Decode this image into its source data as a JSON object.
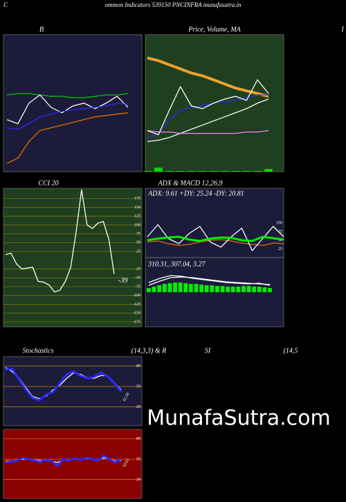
{
  "header": {
    "left": "C",
    "title": "ommon  Indicators 539150  PNCINFRA munafasutra.in",
    "right": "I"
  },
  "watermark": "MunafaSutra.com",
  "chart_data": [
    {
      "type": "line",
      "title": "B",
      "ylim": [
        0,
        100
      ],
      "series": [
        {
          "color": "#00cc00",
          "values": [
            56,
            57,
            57,
            56,
            55,
            55,
            54,
            54,
            55,
            56,
            56,
            57
          ]
        },
        {
          "color": "#ffffff",
          "values": [
            38,
            35,
            50,
            56,
            47,
            43,
            48,
            50,
            46,
            50,
            55,
            47
          ]
        },
        {
          "color": "#2a2aff",
          "values": [
            32,
            31,
            35,
            40,
            42,
            44,
            45,
            46,
            47,
            48,
            50,
            49
          ]
        },
        {
          "color": "#e07000",
          "values": [
            6,
            10,
            22,
            30,
            32,
            34,
            36,
            38,
            40,
            41,
            42,
            43
          ]
        }
      ]
    },
    {
      "type": "line",
      "title": "Price,  Volume,  MA",
      "ylim": [
        0,
        100
      ],
      "volume": {
        "color": "#00dd00",
        "values": [
          0.5,
          3,
          0.5,
          0.5,
          0.5,
          0.5,
          0.5,
          0.5,
          0.5,
          0.5,
          0.5,
          2
        ]
      },
      "series": [
        {
          "color": "#f0a030",
          "width": 4,
          "values": [
            83,
            81,
            78,
            75,
            72,
            70,
            67,
            64,
            61,
            59,
            57,
            55
          ]
        },
        {
          "color": "#ffffff",
          "values": [
            22,
            23,
            25,
            28,
            31,
            34,
            37,
            40,
            43,
            46,
            50,
            53
          ]
        },
        {
          "color": "#ff80ff",
          "values": [
            30,
            29,
            29,
            28,
            28,
            28,
            28,
            28,
            28,
            29,
            29,
            30
          ]
        },
        {
          "color": "#2a2aff",
          "values": [
            24,
            28,
            38,
            45,
            47,
            48,
            50,
            51,
            52,
            54,
            56,
            56
          ]
        },
        {
          "color": "#ffffff",
          "values": [
            30,
            27,
            45,
            62,
            48,
            46,
            50,
            53,
            55,
            52,
            67,
            57
          ]
        }
      ]
    },
    {
      "type": "line",
      "title": "CCI 20",
      "ylim": [
        -189,
        204
      ],
      "grid": true,
      "yticks": [
        175,
        150,
        125,
        100,
        75,
        50,
        25,
        -25,
        -50,
        -75,
        -100,
        -125,
        -150,
        -175
      ],
      "series": [
        {
          "color": "#ffffff",
          "values": [
            16,
            20,
            -10,
            -25,
            -22,
            -20,
            -60,
            -62,
            -70,
            -90,
            -85,
            -60,
            -20,
            80,
            200,
            100,
            90,
            105,
            110,
            60,
            -39
          ]
        }
      ]
    },
    {
      "type": "line",
      "title": "ADX  & MACD 12,26,9",
      "subtitle": "ADX: 9.61 +DY: 25.24 -DY: 20.81",
      "ylim": [
        0,
        200
      ],
      "yticks": [
        100,
        75,
        50,
        25
      ],
      "series": [
        {
          "color": "#e07000",
          "values": [
            45,
            48,
            40,
            35,
            38,
            45,
            50,
            52,
            48,
            42,
            38,
            35,
            42,
            40
          ]
        },
        {
          "color": "#ffffff",
          "values": [
            60,
            95,
            55,
            40,
            70,
            90,
            45,
            30,
            60,
            85,
            20,
            55,
            90,
            60
          ]
        },
        {
          "color": "#00ee00",
          "width": 3,
          "values": [
            50,
            55,
            58,
            60,
            52,
            48,
            55,
            58,
            57,
            50,
            48,
            60,
            56,
            52
          ]
        }
      ]
    },
    {
      "type": "line",
      "subtitle": "310.31,  307.04,  3.27",
      "ylim": [
        -50,
        50
      ],
      "histogram": {
        "color": "#00ee00",
        "values": [
          6,
          8,
          10,
          12,
          13,
          14,
          14,
          13,
          12,
          12,
          11,
          10,
          10,
          9,
          9,
          8,
          8,
          8,
          9,
          9,
          8,
          8,
          7,
          6
        ]
      },
      "series": [
        {
          "color": "#ffffff",
          "values": [
            14,
            20,
            24,
            23,
            20,
            18,
            16,
            14,
            13,
            12,
            13,
            10
          ]
        },
        {
          "color": "#ffffff",
          "values": [
            10,
            16,
            21,
            22,
            21,
            19,
            17,
            15,
            14,
            13,
            12,
            11
          ]
        }
      ]
    },
    {
      "type": "line",
      "title": "Stochastics",
      "title2": "(14,3,3) & R",
      "ylim": [
        -8,
        94
      ],
      "yticks": [
        80,
        50,
        20
      ],
      "series": [
        {
          "color": "#ffffff",
          "values": [
            78,
            72,
            62,
            48,
            35,
            32,
            36,
            45,
            52,
            62,
            70,
            68,
            63,
            62,
            66,
            66,
            56,
            45
          ]
        },
        {
          "color": "#2a2aff",
          "width": 3,
          "values": [
            75,
            76,
            60,
            45,
            33,
            30,
            38,
            42,
            55,
            68,
            72,
            66,
            62,
            64,
            70,
            65,
            55,
            42.56
          ]
        }
      ]
    },
    {
      "type": "line",
      "title": "SI",
      "title2": "(14,5",
      "ylim": [
        -8,
        94
      ],
      "yticks": [
        80,
        50,
        20
      ],
      "series": [
        {
          "color": "#ffffff",
          "values": [
            47,
            47,
            49,
            50,
            50,
            49,
            48,
            48,
            47,
            45,
            49,
            49,
            50,
            50,
            51,
            50,
            49,
            52,
            51,
            47,
            48
          ]
        },
        {
          "color": "#2a2aff",
          "width": 3,
          "values": [
            45,
            46,
            48,
            52,
            50,
            48,
            46,
            49,
            47,
            40,
            50,
            48,
            51,
            49,
            52,
            50,
            48,
            55,
            50,
            45,
            50.61
          ]
        }
      ]
    }
  ]
}
